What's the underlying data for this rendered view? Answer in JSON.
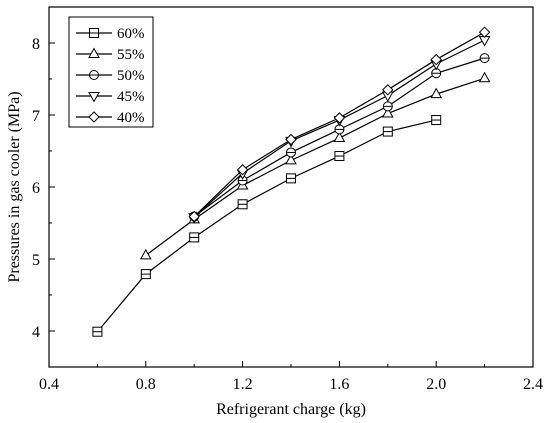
{
  "chart_data": {
    "type": "line",
    "xlabel": "Refrigerant charge (kg)",
    "ylabel": "Pressures in gas cooler (MPa)",
    "xlim": [
      0.4,
      2.4
    ],
    "ylim": [
      3.5,
      8.5
    ],
    "xticks": [
      "0.4",
      "0.8",
      "1.2",
      "1.6",
      "2.0",
      "2.4"
    ],
    "yticks": [
      "4",
      "5",
      "6",
      "7",
      "8"
    ],
    "grid": false,
    "legend_position": "top-left",
    "series": [
      {
        "name": "60%",
        "marker": "square",
        "x": [
          0.6,
          0.8,
          1.0,
          1.2,
          1.4,
          1.6,
          1.8,
          2.0
        ],
        "y": [
          3.99,
          4.79,
          5.3,
          5.76,
          6.12,
          6.43,
          6.77,
          6.93
        ]
      },
      {
        "name": "55%",
        "marker": "triangle-up",
        "x": [
          0.8,
          1.0,
          1.2,
          1.4,
          1.6,
          1.8,
          2.0,
          2.2
        ],
        "y": [
          5.05,
          5.55,
          6.02,
          6.37,
          6.68,
          7.02,
          7.29,
          7.51
        ]
      },
      {
        "name": "50%",
        "marker": "circle",
        "x": [
          1.0,
          1.2,
          1.4,
          1.6,
          1.8,
          2.0,
          2.2
        ],
        "y": [
          5.59,
          6.09,
          6.48,
          6.8,
          7.12,
          7.58,
          7.79
        ]
      },
      {
        "name": "45%",
        "marker": "triangle-down",
        "x": [
          1.0,
          1.2,
          1.4,
          1.6,
          1.8,
          2.0,
          2.2
        ],
        "y": [
          5.58,
          6.19,
          6.64,
          6.93,
          7.27,
          7.71,
          8.04
        ]
      },
      {
        "name": "40%",
        "marker": "diamond",
        "x": [
          1.0,
          1.2,
          1.4,
          1.6,
          1.8,
          2.0,
          2.2
        ],
        "y": [
          5.59,
          6.24,
          6.66,
          6.96,
          7.35,
          7.77,
          8.15
        ]
      }
    ]
  }
}
